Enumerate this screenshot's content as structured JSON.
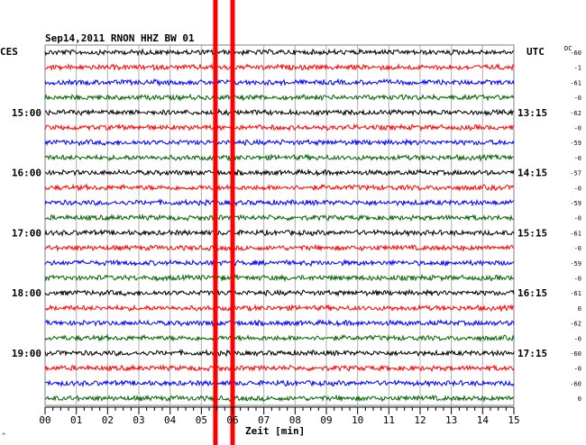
{
  "chart_data": {
    "type": "line",
    "title": "Sep14,2011   RNON HHZ BW 01",
    "xlabel": "Zeit [min]",
    "x_range": [
      0,
      15
    ],
    "x_ticks": [
      "00",
      "01",
      "02",
      "03",
      "04",
      "05",
      "06",
      "07",
      "08",
      "09",
      "10",
      "11",
      "12",
      "13",
      "14",
      "15"
    ],
    "left_axis_label": "CES",
    "right_axis_label": "UTC",
    "dc_header": "DC",
    "left_hour_labels": [
      {
        "row": 4,
        "label": "15:00"
      },
      {
        "row": 8,
        "label": "16:00"
      },
      {
        "row": 12,
        "label": "17:00"
      },
      {
        "row": 16,
        "label": "18:00"
      },
      {
        "row": 20,
        "label": "19:00"
      }
    ],
    "right_hour_labels": [
      {
        "row": 4,
        "label": "13:15"
      },
      {
        "row": 8,
        "label": "14:15"
      },
      {
        "row": 12,
        "label": "15:15"
      },
      {
        "row": 16,
        "label": "16:15"
      },
      {
        "row": 20,
        "label": "17:15"
      }
    ],
    "trace_colors": [
      "#000000",
      "#ff0000",
      "#0000ff",
      "#006400"
    ],
    "traces": 24,
    "dc_values": [
      "-60",
      "-1",
      "-61",
      "-0",
      "-62",
      "-0",
      "-59",
      "-0",
      "-57",
      "-0",
      "-59",
      "-0",
      "-61",
      "-0",
      "-59",
      "-0",
      "-61",
      "0",
      "-62",
      "-0",
      "-60",
      "-0",
      "-60",
      "0"
    ],
    "markers": [
      {
        "x_min": 5.45,
        "color": "#ff0000"
      },
      {
        "x_min": 6.0,
        "color": "#ff0000"
      }
    ],
    "grid": true,
    "corner_mark": "^"
  }
}
